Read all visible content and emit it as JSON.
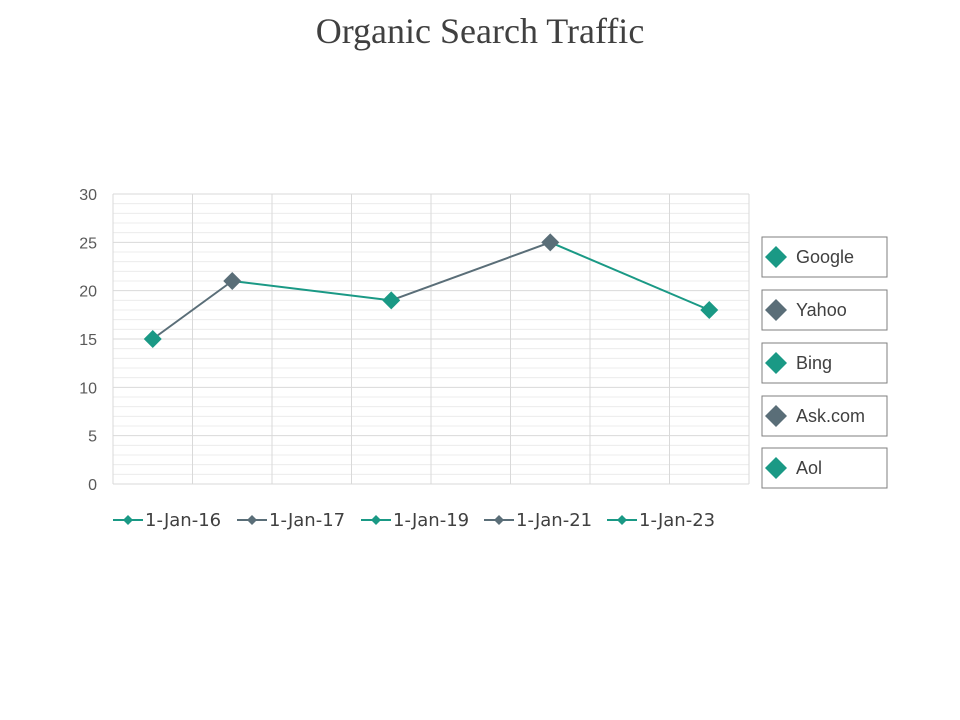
{
  "title": "Organic Search Traffic",
  "colors": {
    "teal": "#1a9985",
    "slate": "#5a6e78",
    "grid": "#d9d9d9",
    "minorGrid": "#ececec"
  },
  "chart_data": {
    "type": "line",
    "title": "Organic Search Traffic",
    "xlabel": "",
    "ylabel": "",
    "ylim": [
      0,
      30
    ],
    "y_ticks": [
      "0",
      "5",
      "10",
      "15",
      "20",
      "25",
      "30"
    ],
    "grid": true,
    "legend_placement": "right",
    "x_legend_placement": "bottom",
    "categories": [
      "Google",
      "Yahoo",
      "Bing",
      "Ask.com",
      "Aol"
    ],
    "series": [
      {
        "name": "1-Jan-16",
        "values": [
          15,
          21,
          19,
          25,
          18
        ]
      },
      {
        "name": "1-Jan-17"
      },
      {
        "name": "1-Jan-19"
      },
      {
        "name": "1-Jan-21"
      },
      {
        "name": "1-Jan-23"
      }
    ],
    "point_colors": [
      "teal",
      "slate",
      "teal",
      "slate",
      "teal"
    ],
    "point_x_slots": [
      0.5,
      1.5,
      3.5,
      5.5,
      7.5
    ]
  }
}
